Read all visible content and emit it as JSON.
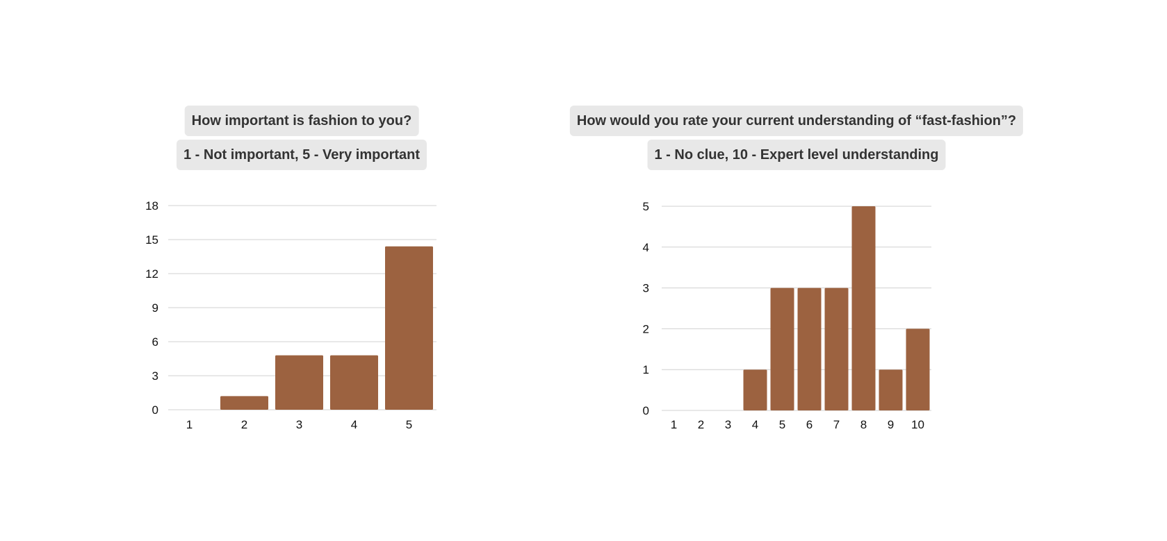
{
  "colors": {
    "bar": "#9c6240",
    "grid": "#d0d0d0",
    "pill_bg": "#e8e8e8",
    "title_text": "#333333"
  },
  "chart_data": [
    {
      "type": "bar",
      "title": "How important is fashion to you?",
      "subtitle": "1 - Not important, 5 - Very important",
      "categories": [
        "1",
        "2",
        "3",
        "4",
        "5"
      ],
      "values": [
        0,
        1.2,
        4.8,
        4.8,
        14.4
      ],
      "yticks": [
        "0",
        "3",
        "6",
        "9",
        "12",
        "15",
        "18"
      ],
      "ylim": [
        0,
        18
      ],
      "grid": true,
      "legend": "none"
    },
    {
      "type": "bar",
      "title": "How would you rate your current understanding of “fast-fashion”?",
      "subtitle": "1 - No clue, 10 - Expert level understanding",
      "categories": [
        "1",
        "2",
        "3",
        "4",
        "5",
        "6",
        "7",
        "8",
        "9",
        "10"
      ],
      "values": [
        0,
        0,
        0,
        1,
        3,
        3,
        3,
        5,
        1,
        2
      ],
      "yticks": [
        "0",
        "1",
        "2",
        "3",
        "4",
        "5"
      ],
      "ylim": [
        0,
        5
      ],
      "grid": true,
      "legend": "none"
    }
  ]
}
